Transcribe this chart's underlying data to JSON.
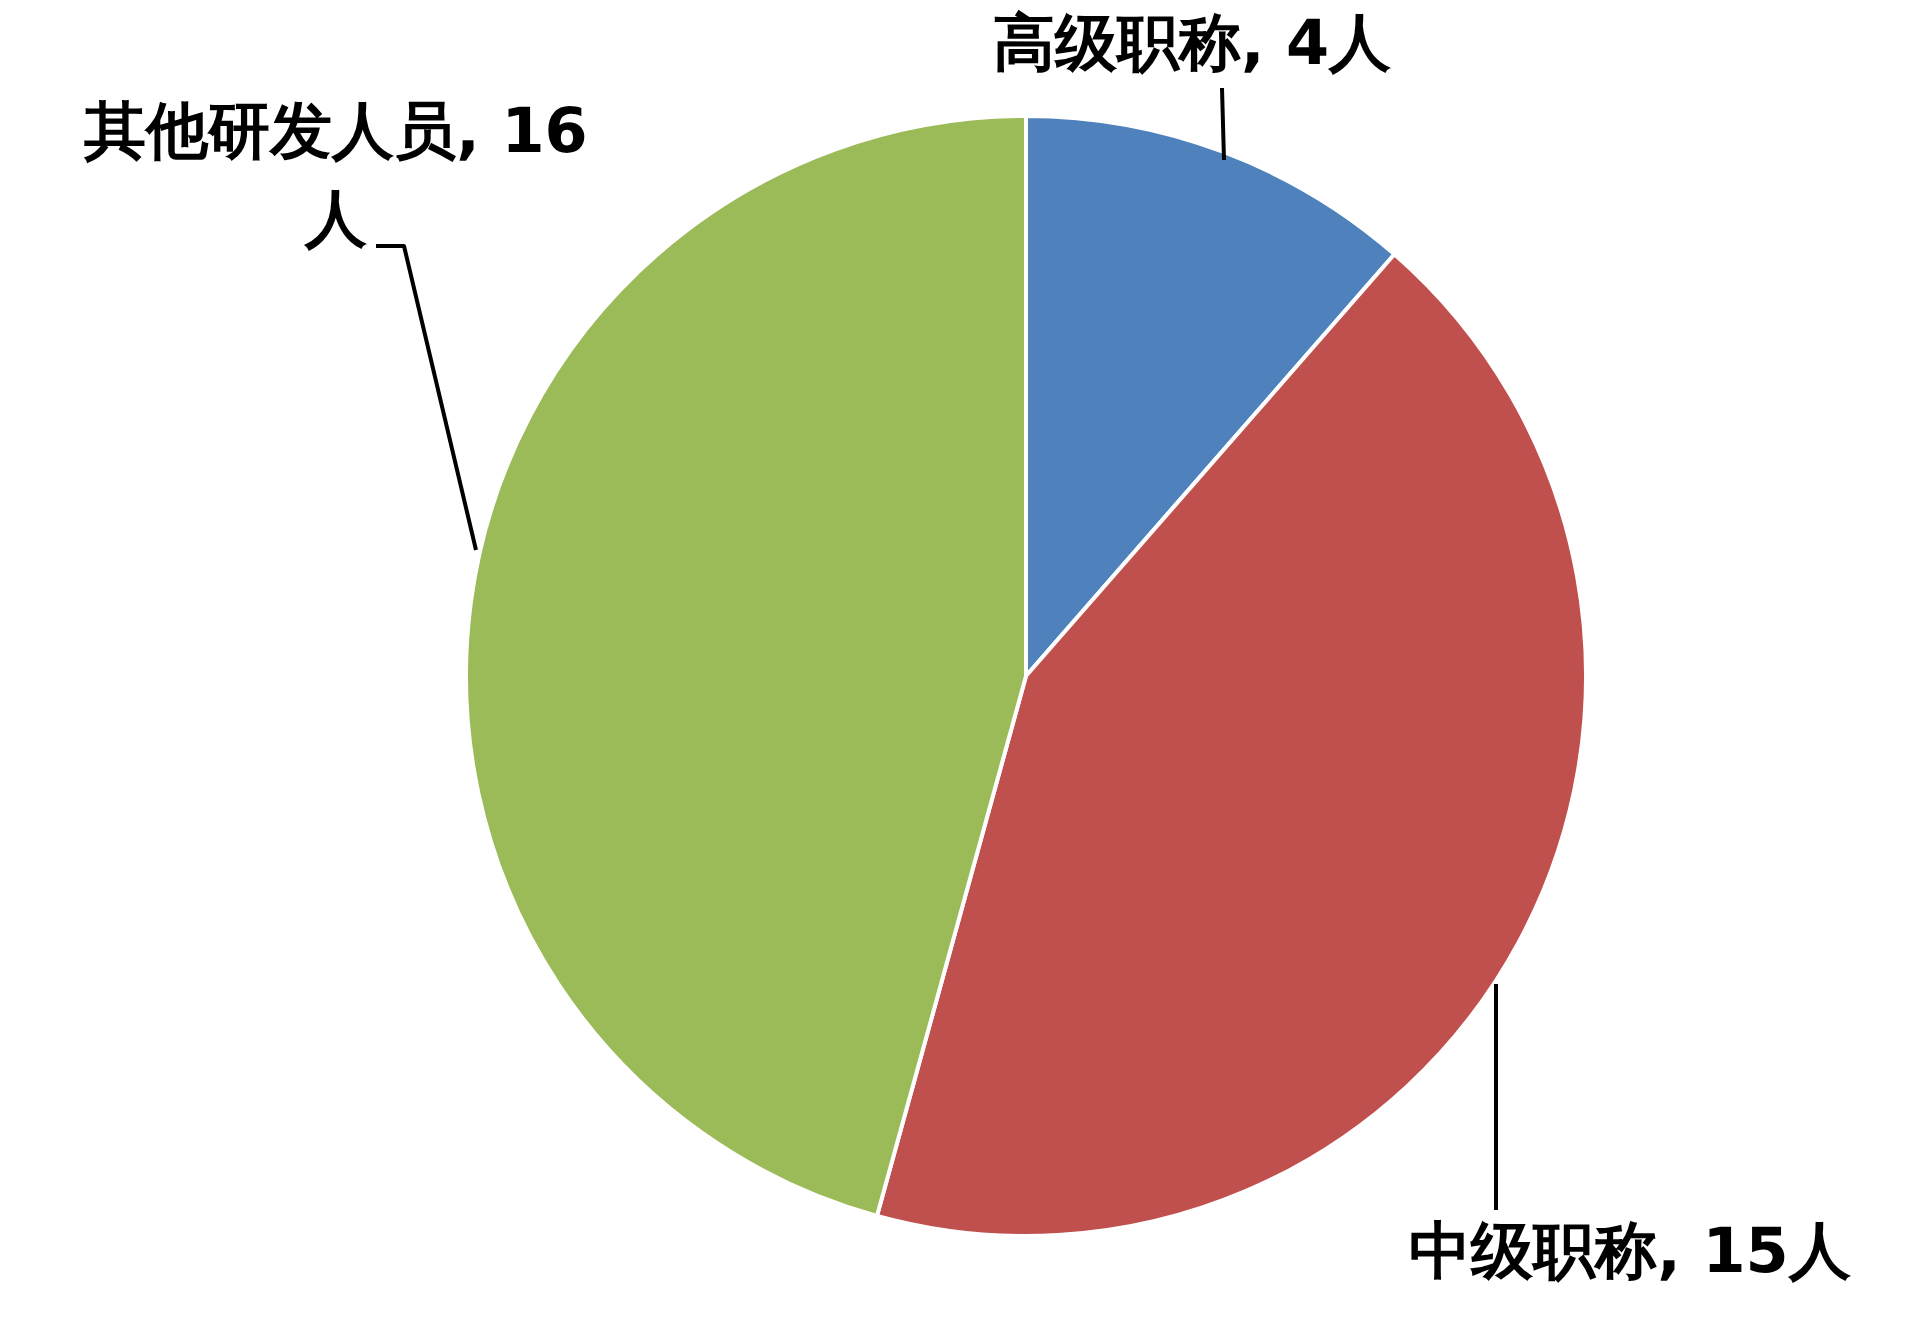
{
  "chart_data": {
    "type": "pie",
    "categories": [
      "高级职称",
      "中级职称",
      "其他研发人员"
    ],
    "values": [
      4,
      15,
      16
    ],
    "colors": [
      "#4f81bd",
      "#c0504d",
      "#9bbb59"
    ],
    "value_labels": [
      "4人",
      "15人",
      "16人"
    ],
    "legend": false
  }
}
